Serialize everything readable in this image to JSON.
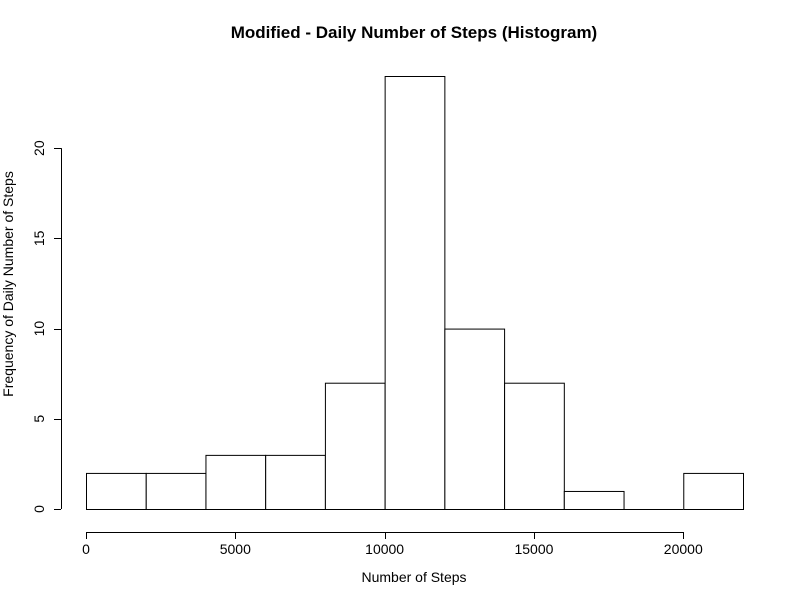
{
  "chart_data": {
    "type": "bar",
    "title": "Modified - Daily Number of Steps (Histogram)",
    "xlabel": "Number of Steps",
    "ylabel": "Frequency of Daily Number of Steps",
    "bins": [
      {
        "from": 0,
        "to": 2000,
        "count": 2
      },
      {
        "from": 2000,
        "to": 4000,
        "count": 2
      },
      {
        "from": 4000,
        "to": 6000,
        "count": 3
      },
      {
        "from": 6000,
        "to": 8000,
        "count": 3
      },
      {
        "from": 8000,
        "to": 10000,
        "count": 7
      },
      {
        "from": 10000,
        "to": 12000,
        "count": 24
      },
      {
        "from": 12000,
        "to": 14000,
        "count": 10
      },
      {
        "from": 14000,
        "to": 16000,
        "count": 7
      },
      {
        "from": 16000,
        "to": 18000,
        "count": 1
      },
      {
        "from": 18000,
        "to": 20000,
        "count": 0
      },
      {
        "from": 20000,
        "to": 22000,
        "count": 2
      }
    ],
    "xlim": [
      0,
      22000
    ],
    "ylim": [
      0,
      24
    ],
    "x_ticks": [
      0,
      5000,
      10000,
      15000,
      20000
    ],
    "y_ticks": [
      0,
      5,
      10,
      15,
      20
    ],
    "grid": false,
    "bar_fill": "#ffffff",
    "bar_stroke": "#000000"
  }
}
